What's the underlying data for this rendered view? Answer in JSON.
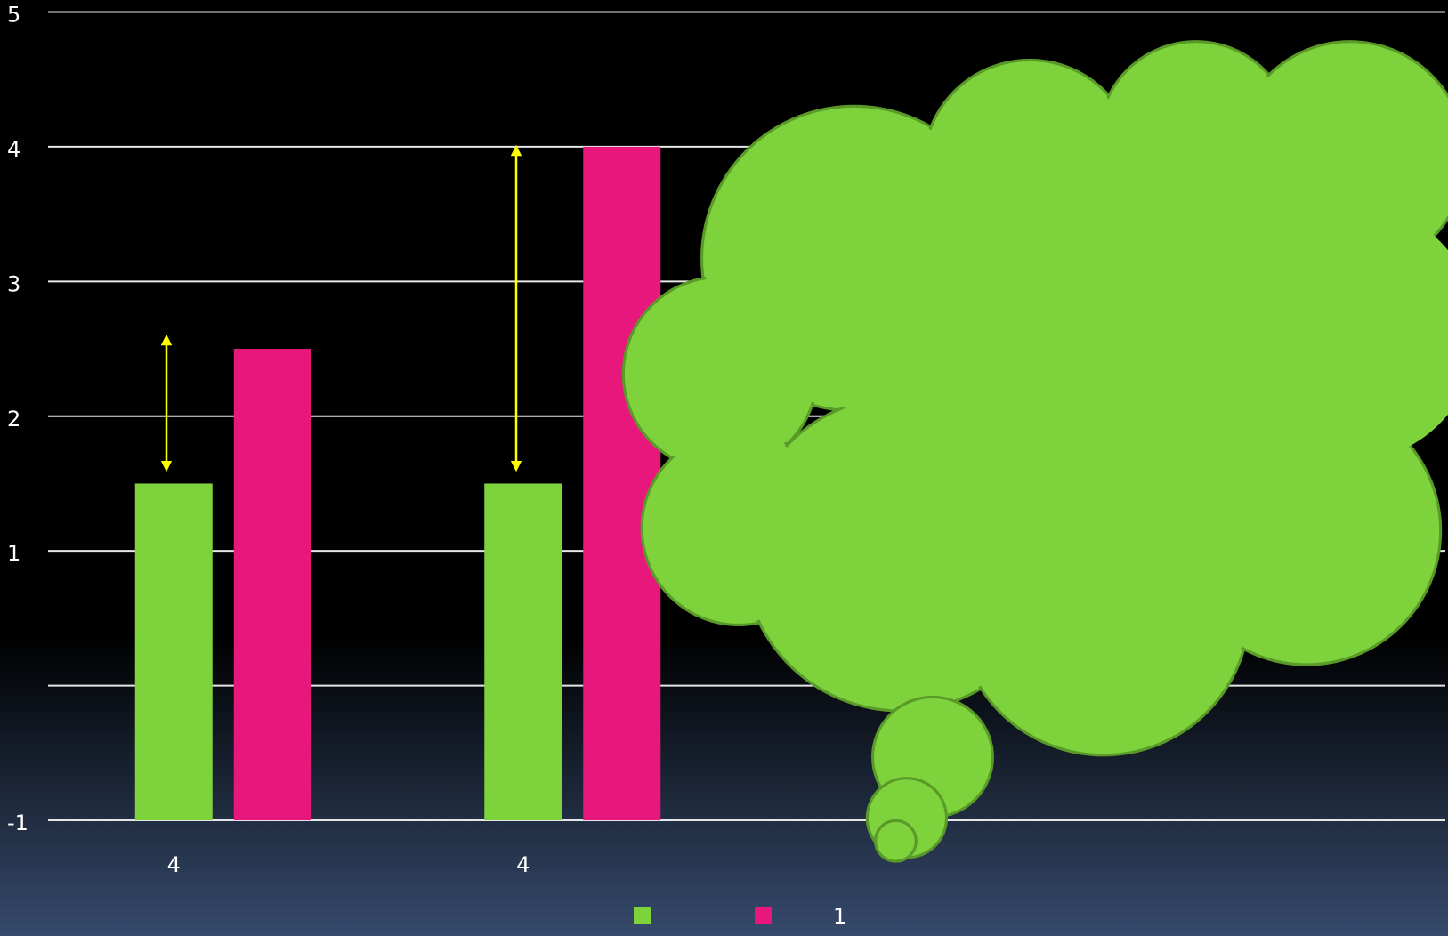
{
  "chart_data": {
    "type": "bar",
    "categories": [
      "4",
      "4",
      null,
      null
    ],
    "series": [
      {
        "name": null,
        "color": "#7ed23c",
        "values": [
          1.5,
          1.5,
          null,
          null
        ]
      },
      {
        "name": "1",
        "color": "#e8177c",
        "values": [
          2.5,
          4,
          null,
          null
        ]
      }
    ],
    "ylim": [
      -1,
      5
    ],
    "yticks": [
      -1,
      {
        "value": 0,
        "label": ""
      },
      1,
      2,
      3,
      4,
      5
    ],
    "grid": true,
    "legend": "bottom"
  }
}
